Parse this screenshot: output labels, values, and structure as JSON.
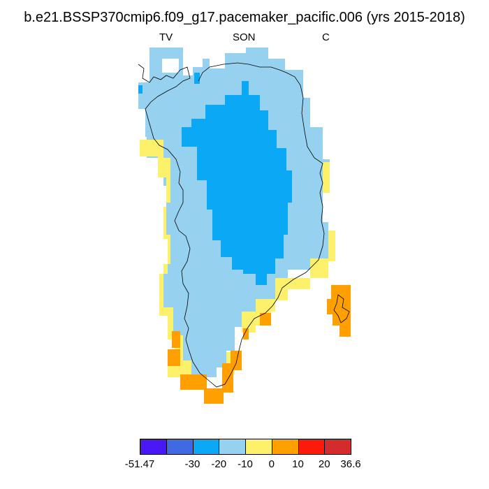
{
  "title": "b.e21.BSSP370cmip6.f09_g17.pacemaker_pacific.006 (yrs 2015-2018)",
  "subtitle": {
    "left": "TV",
    "center": "SON",
    "right": "C"
  },
  "colorbar": {
    "colors": [
      "#4a17f5",
      "#4169e1",
      "#0aa8f5",
      "#96d1ef",
      "#fdf06a",
      "#ff9f00",
      "#fe1a0b",
      "#d42c2c"
    ],
    "labels": [
      "-51.47",
      "-30",
      "-20",
      "-10",
      "0",
      "10",
      "20",
      "36.6"
    ]
  },
  "legend_values": {
    "very_negative": "#0aa8f5",
    "negative": "#96d1ef",
    "slightly_negative": "#fdf06a",
    "positive": "#ff9f00"
  }
}
